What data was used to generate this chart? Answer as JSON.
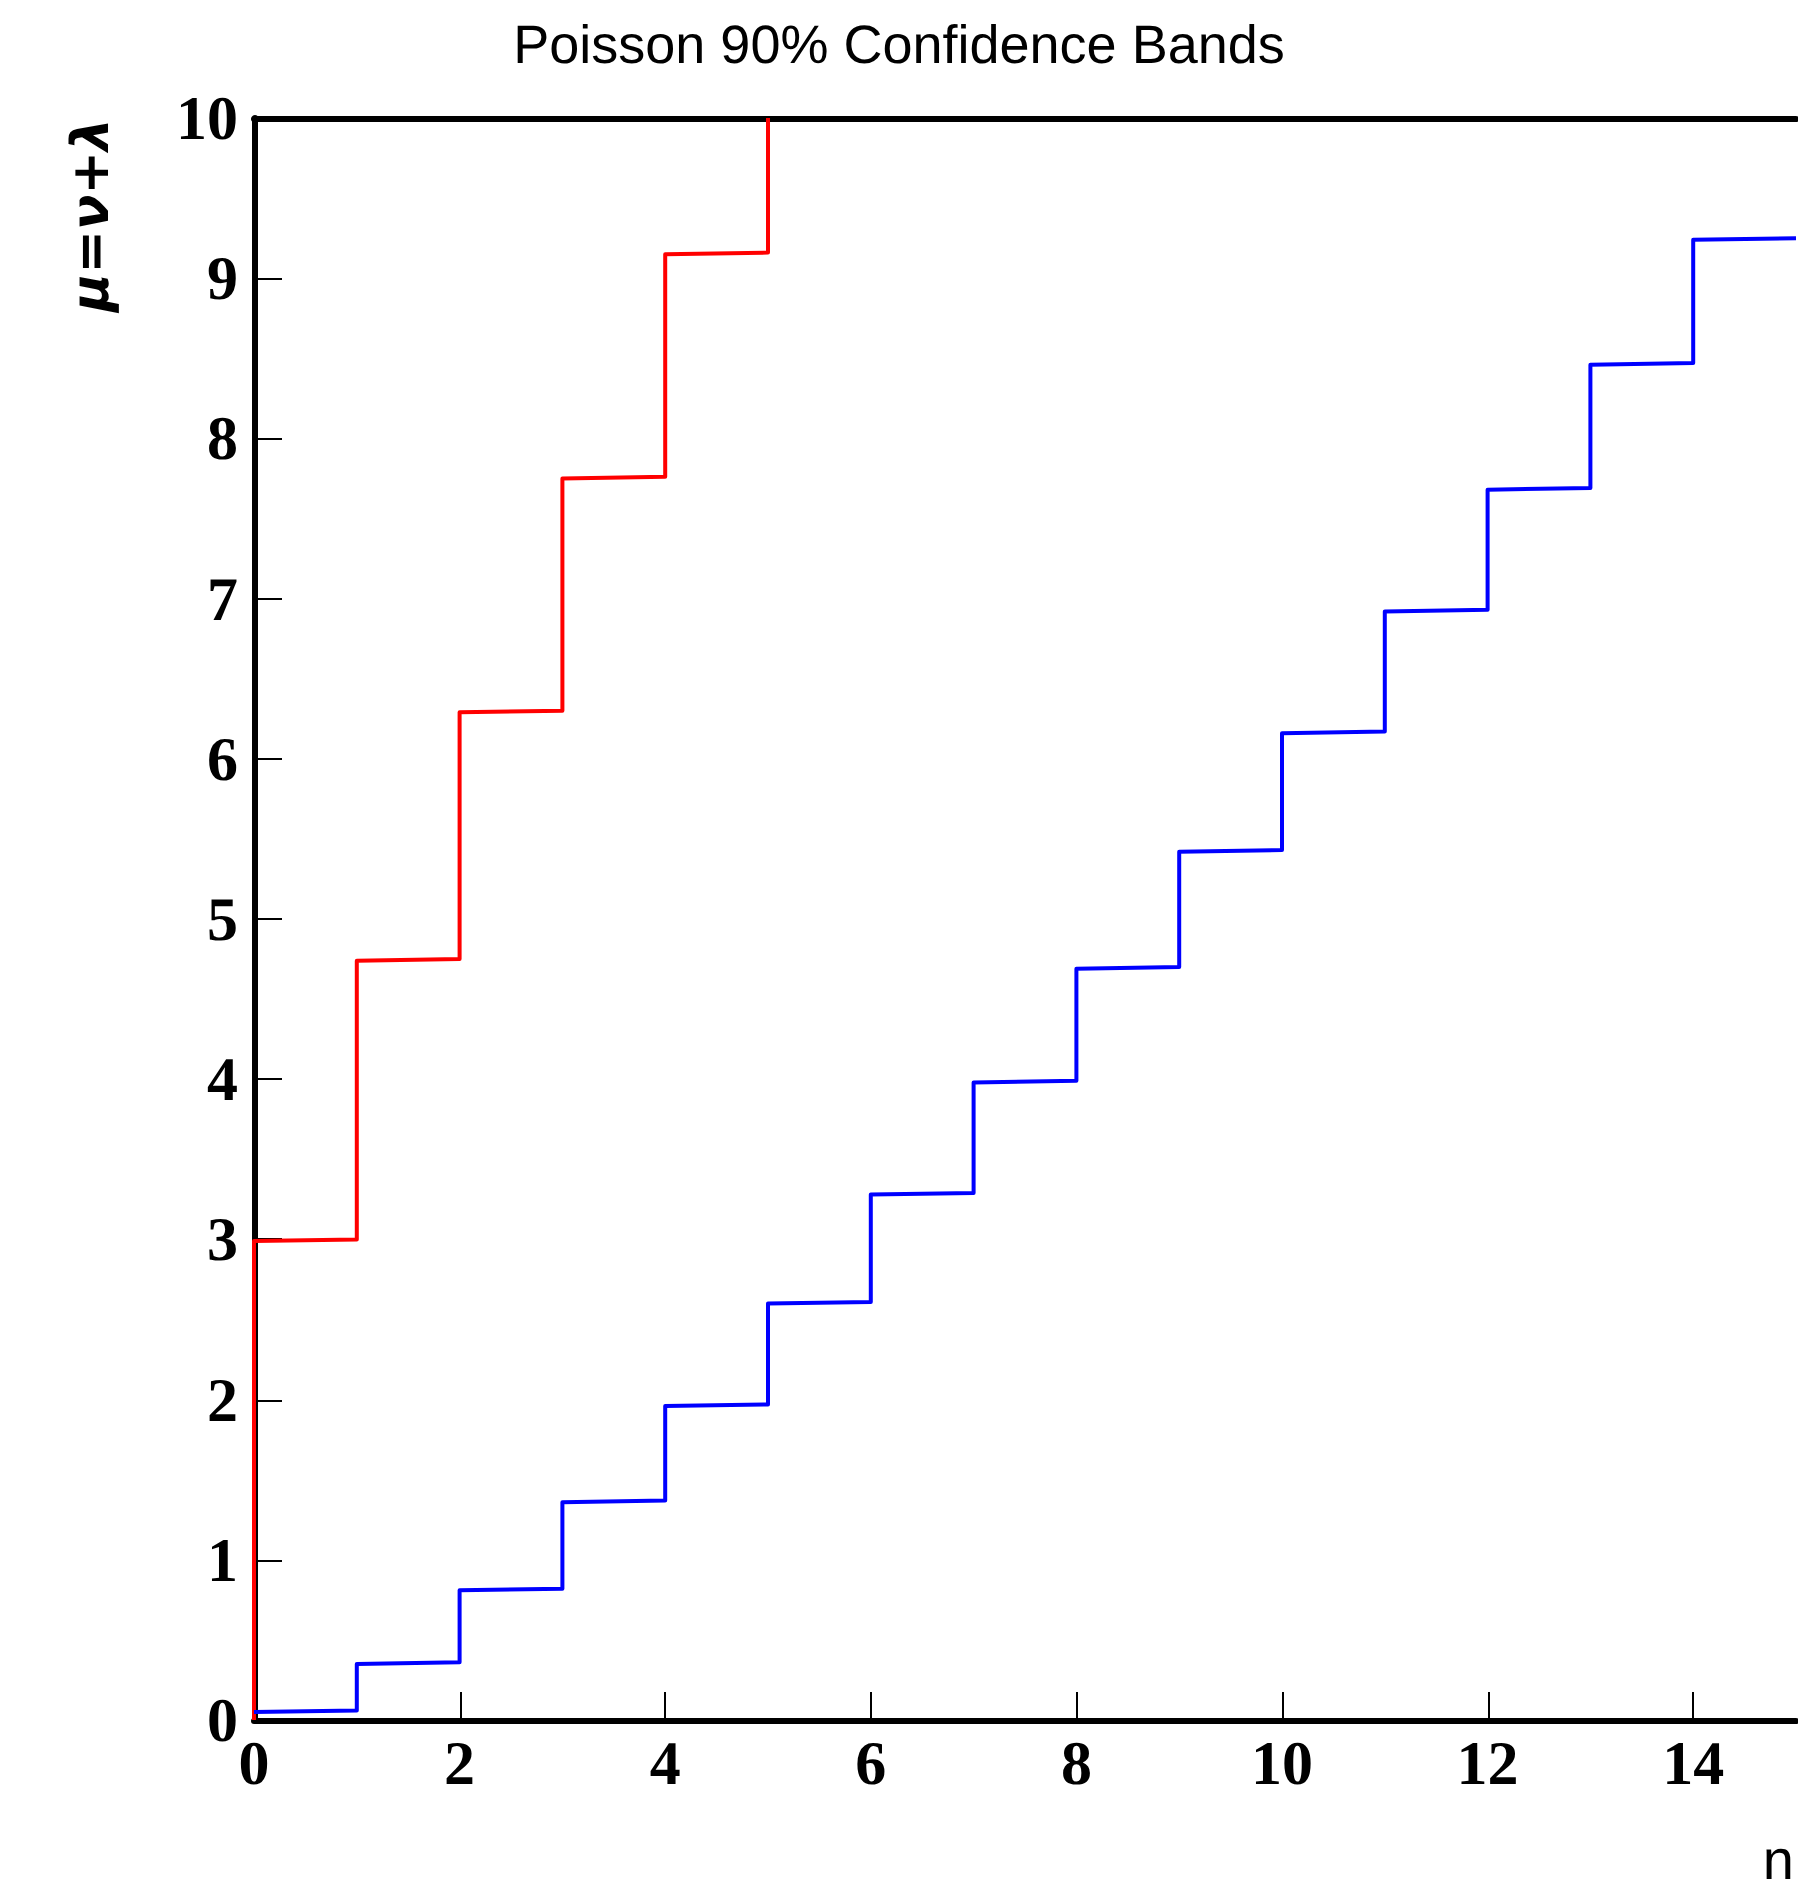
{
  "chart_data": {
    "type": "line",
    "title": "Poisson 90% Confidence Bands",
    "xlabel": "n",
    "ylabel": "μ=ν+λ",
    "xlim": [
      0,
      15
    ],
    "xticks": [
      0,
      2,
      4,
      6,
      8,
      10,
      12,
      14
    ],
    "ylim": [
      0,
      10
    ],
    "yticks": [
      0,
      1,
      2,
      3,
      4,
      5,
      6,
      7,
      8,
      9,
      10
    ],
    "grid": false,
    "marker": "none",
    "line_style": "solid",
    "series": [
      {
        "color": "#ff0000",
        "x": [
          0,
          0,
          1,
          1,
          2,
          2,
          3,
          3,
          4,
          4,
          5,
          5
        ],
        "values": [
          0,
          2.99,
          3.0,
          4.74,
          4.75,
          6.29,
          6.3,
          7.75,
          7.76,
          9.15,
          9.16,
          10
        ]
      },
      {
        "color": "#0000ff",
        "x": [
          0,
          1,
          1,
          2,
          2,
          3,
          3,
          4,
          4,
          5,
          5,
          6,
          6,
          7,
          7,
          8,
          8,
          9,
          9,
          10,
          10,
          11,
          11,
          12,
          12,
          13,
          13,
          14,
          14,
          15
        ],
        "values": [
          0.05,
          0.06,
          0.35,
          0.36,
          0.81,
          0.82,
          1.36,
          1.37,
          1.96,
          1.97,
          2.6,
          2.61,
          3.28,
          3.29,
          3.98,
          3.99,
          4.69,
          4.7,
          5.42,
          5.43,
          6.16,
          6.17,
          6.92,
          6.93,
          7.68,
          7.69,
          8.46,
          8.47,
          9.24,
          9.25
        ]
      }
    ]
  }
}
